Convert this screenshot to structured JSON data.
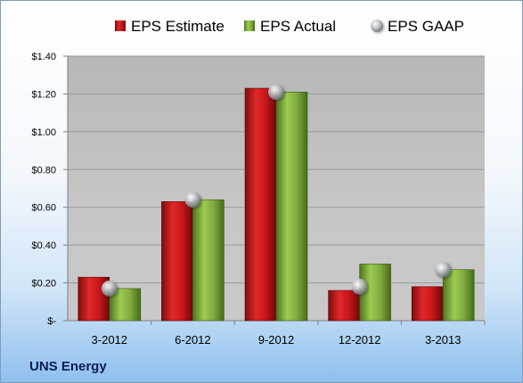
{
  "chart_data": {
    "type": "bar",
    "categories": [
      "3-2012",
      "6-2012",
      "9-2012",
      "12-2012",
      "3-2013"
    ],
    "series": [
      {
        "name": "EPS Estimate",
        "values": [
          0.23,
          0.63,
          1.23,
          0.16,
          0.18
        ],
        "color": "#c0181a",
        "marker": "bar"
      },
      {
        "name": "EPS Actual",
        "values": [
          0.17,
          0.64,
          1.21,
          0.3,
          0.27
        ],
        "color": "#7fa83a",
        "marker": "bar"
      },
      {
        "name": "EPS GAAP",
        "values": [
          0.17,
          0.64,
          1.21,
          0.18,
          0.27
        ],
        "color": "#b4b8be",
        "marker": "sphere"
      }
    ],
    "yticks": [
      "$-",
      "$0.20",
      "$0.40",
      "$0.60",
      "$0.80",
      "$1.00",
      "$1.20",
      "$1.40"
    ],
    "ylim": [
      0,
      1.4
    ],
    "grid": true,
    "legend_position": "top",
    "company": "UNS Energy"
  }
}
